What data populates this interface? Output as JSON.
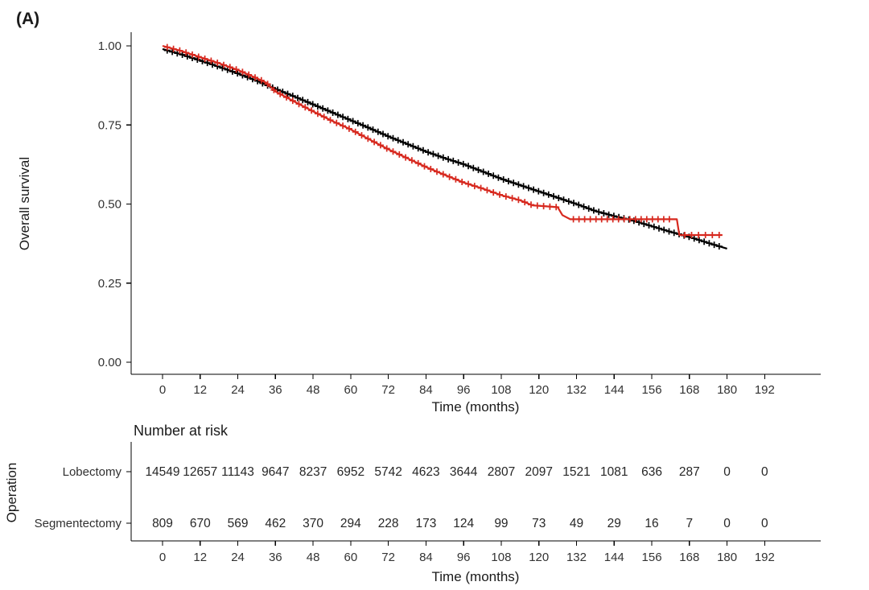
{
  "panel_label": "(A)",
  "colors": {
    "lobectomy": "#000000",
    "segmentectomy": "#D7291F",
    "axis": "#000000",
    "tick_text": "#333333"
  },
  "chart_data": {
    "type": "line",
    "subtype": "kaplan-meier-step",
    "title": "",
    "xlabel": "Time (months)",
    "ylabel": "Overall survival",
    "xlim": [
      0,
      192
    ],
    "ylim": [
      0,
      1
    ],
    "grid": false,
    "legend": "none",
    "x_ticks": [
      0,
      12,
      24,
      36,
      48,
      60,
      72,
      84,
      96,
      108,
      120,
      132,
      144,
      156,
      168,
      180,
      192
    ],
    "y_ticks": [
      {
        "value": 0.0,
        "label": "0.00"
      },
      {
        "value": 0.25,
        "label": "0.25"
      },
      {
        "value": 0.5,
        "label": "0.50"
      },
      {
        "value": 0.75,
        "label": "0.75"
      },
      {
        "value": 1.0,
        "label": "1.00"
      }
    ],
    "series": [
      {
        "name": "Lobectomy",
        "color": "#000000",
        "points": [
          [
            0,
            0.99
          ],
          [
            6,
            0.973
          ],
          [
            12,
            0.954
          ],
          [
            18,
            0.934
          ],
          [
            24,
            0.913
          ],
          [
            30,
            0.89
          ],
          [
            36,
            0.864
          ],
          [
            42,
            0.84
          ],
          [
            48,
            0.815
          ],
          [
            54,
            0.79
          ],
          [
            60,
            0.765
          ],
          [
            66,
            0.74
          ],
          [
            72,
            0.714
          ],
          [
            78,
            0.69
          ],
          [
            84,
            0.666
          ],
          [
            90,
            0.645
          ],
          [
            96,
            0.626
          ],
          [
            102,
            0.603
          ],
          [
            108,
            0.58
          ],
          [
            114,
            0.56
          ],
          [
            120,
            0.54
          ],
          [
            126,
            0.52
          ],
          [
            132,
            0.5
          ],
          [
            138,
            0.478
          ],
          [
            144,
            0.462
          ],
          [
            150,
            0.448
          ],
          [
            156,
            0.43
          ],
          [
            162,
            0.412
          ],
          [
            168,
            0.396
          ],
          [
            174,
            0.377
          ],
          [
            180,
            0.359
          ]
        ],
        "censor_runs": [
          {
            "from": 1.5,
            "to": 179,
            "step": 1.6
          }
        ]
      },
      {
        "name": "Segmentectomy",
        "color": "#D7291F",
        "points": [
          [
            0,
            1.0
          ],
          [
            6,
            0.984
          ],
          [
            12,
            0.964
          ],
          [
            18,
            0.945
          ],
          [
            24,
            0.924
          ],
          [
            30,
            0.898
          ],
          [
            33,
            0.884
          ],
          [
            36,
            0.856
          ],
          [
            42,
            0.824
          ],
          [
            48,
            0.793
          ],
          [
            54,
            0.763
          ],
          [
            60,
            0.736
          ],
          [
            66,
            0.704
          ],
          [
            72,
            0.673
          ],
          [
            78,
            0.645
          ],
          [
            84,
            0.617
          ],
          [
            90,
            0.592
          ],
          [
            96,
            0.568
          ],
          [
            102,
            0.549
          ],
          [
            108,
            0.528
          ],
          [
            114,
            0.512
          ],
          [
            118,
            0.496
          ],
          [
            126,
            0.49
          ],
          [
            127.5,
            0.465
          ],
          [
            130,
            0.452
          ],
          [
            164,
            0.452
          ],
          [
            164.8,
            0.402
          ],
          [
            178.5,
            0.402
          ]
        ],
        "censor_runs": [
          {
            "from": 1.5,
            "to": 127,
            "step": 2.0
          },
          {
            "from": 131,
            "to": 163,
            "step": 1.8
          },
          {
            "from": 166.5,
            "to": 178,
            "step": 2.2
          }
        ]
      }
    ],
    "risk_table": {
      "title": "Number at risk",
      "group_axis_label": "Operation",
      "xlabel": "Time (months)",
      "x_ticks": [
        0,
        12,
        24,
        36,
        48,
        60,
        72,
        84,
        96,
        108,
        120,
        132,
        144,
        156,
        168,
        180,
        192
      ],
      "rows": [
        {
          "label": "Lobectomy",
          "color": "#000000",
          "values": [
            14549,
            12657,
            11143,
            9647,
            8237,
            6952,
            5742,
            4623,
            3644,
            2807,
            2097,
            1521,
            1081,
            636,
            287,
            0,
            0
          ]
        },
        {
          "label": "Segmentectomy",
          "color": "#D7291F",
          "values": [
            809,
            670,
            569,
            462,
            370,
            294,
            228,
            173,
            124,
            99,
            73,
            49,
            29,
            16,
            7,
            0,
            0
          ]
        }
      ]
    }
  }
}
